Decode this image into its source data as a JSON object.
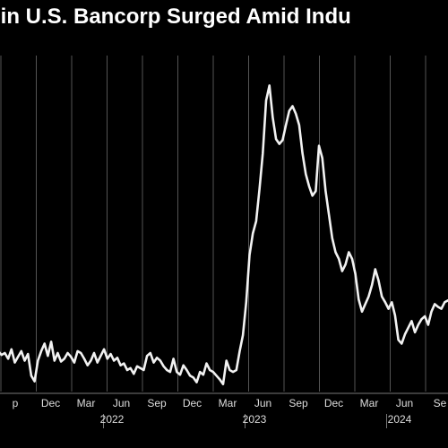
{
  "title": "t in U.S. Bancorp Surged Amid Indu",
  "chart_data": {
    "type": "line",
    "title": "t in U.S. Bancorp Surged Amid Indu",
    "xlabel": "",
    "ylabel": "",
    "grid": "vertical",
    "x_tick_labels": [
      "p",
      "Dec",
      "Mar",
      "Jun",
      "Sep",
      "Dec",
      "Mar",
      "Jun",
      "Sep",
      "Dec",
      "Mar",
      "Jun",
      "Se"
    ],
    "year_labels": [
      {
        "label": "2022",
        "after_tick": 3
      },
      {
        "label": "2023",
        "after_tick": 7
      },
      {
        "label": "2024",
        "after_tick": 11
      }
    ],
    "series": [
      {
        "values": [
          370,
          374,
          372,
          378,
          368,
          382,
          376,
          370,
          380,
          373,
          396,
          402,
          380,
          370,
          362,
          375,
          360,
          380,
          372,
          381,
          378,
          372,
          376,
          382,
          370,
          372,
          378,
          385,
          380,
          372,
          382,
          375,
          368,
          378,
          373,
          380,
          377,
          385,
          383,
          390,
          388,
          394,
          386,
          388,
          390,
          375,
          372,
          382,
          377,
          380,
          386,
          390,
          392,
          378,
          392,
          395,
          385,
          390,
          396,
          398,
          403,
          392,
          395,
          383,
          390,
          392,
          396,
          400,
          405,
          380,
          390,
          392,
          390,
          370,
          353,
          318,
          268,
          245,
          232,
          198,
          160,
          104,
          88,
          122,
          145,
          150,
          146,
          130,
          115,
          110,
          118,
          130,
          160,
          182,
          195,
          205,
          200,
          152,
          165,
          200,
          225,
          250,
          265,
          272,
          285,
          278,
          265,
          272,
          288,
          315,
          328,
          320,
          312,
          300,
          283,
          295,
          312,
          318,
          325,
          318,
          332,
          358,
          362,
          352,
          345,
          338,
          350,
          342,
          336,
          333,
          342,
          328,
          320,
          323,
          325,
          318,
          316
        ]
      }
    ]
  }
}
